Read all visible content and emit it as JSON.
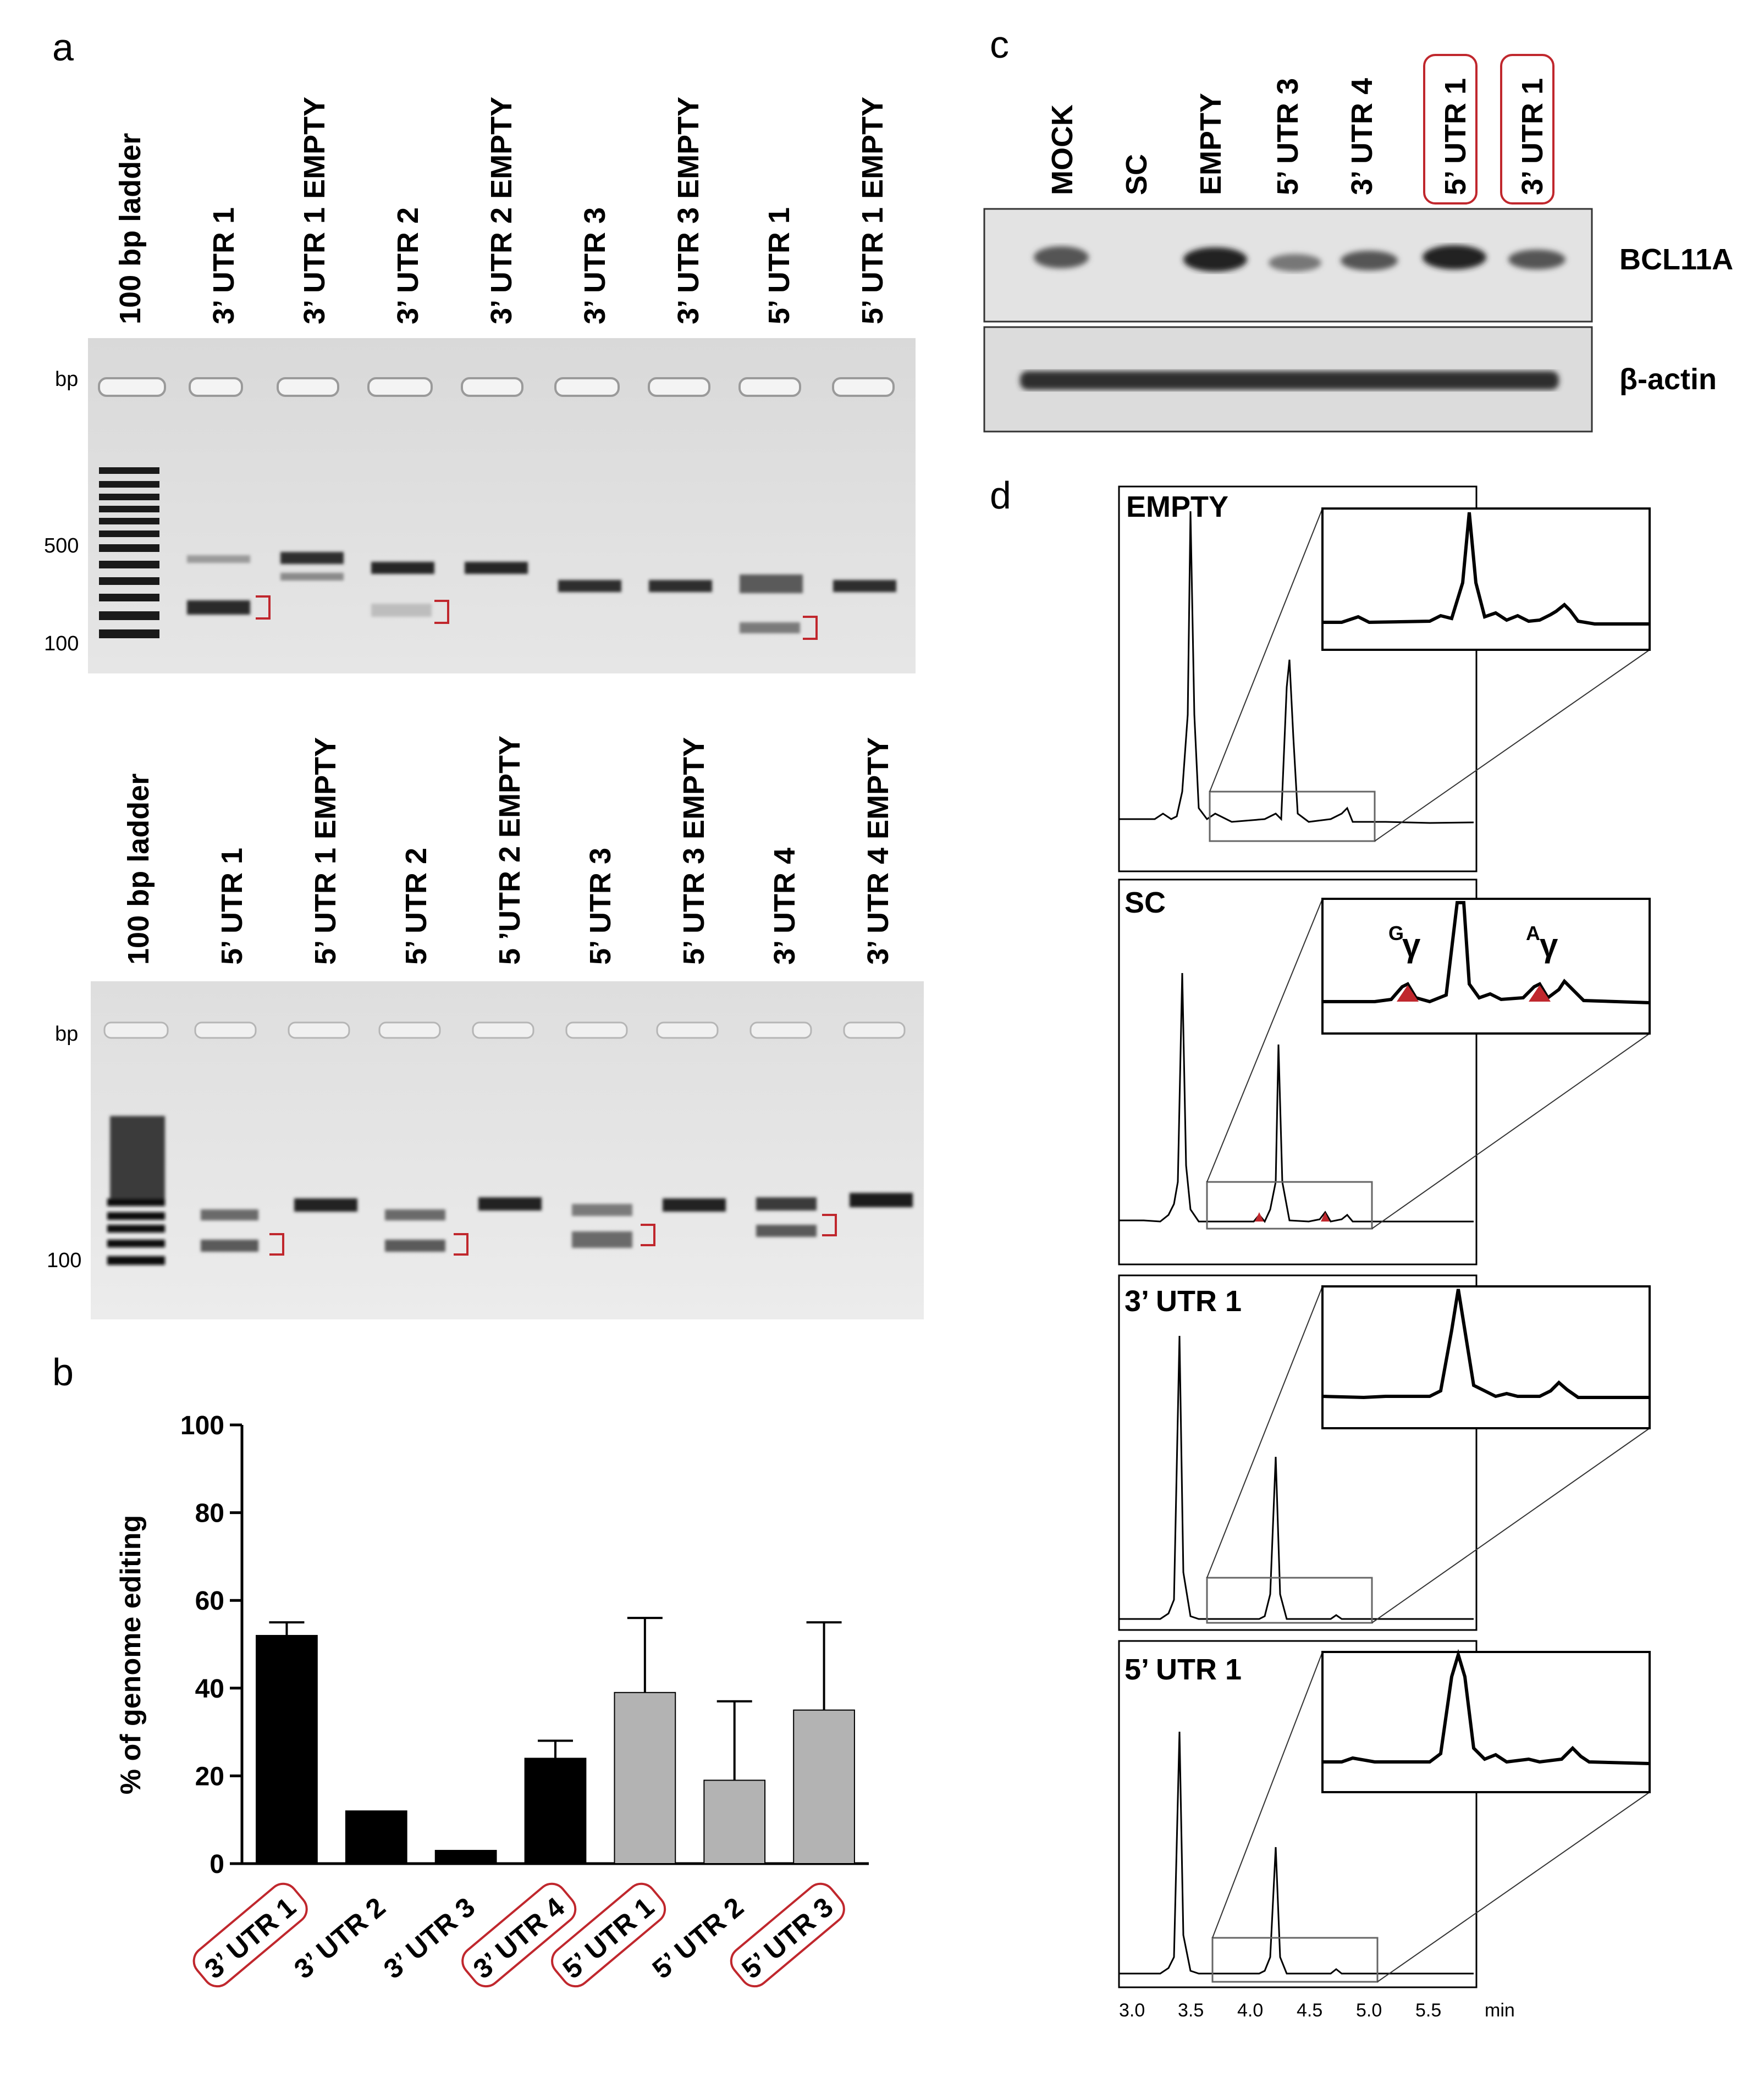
{
  "panels": {
    "a": {
      "letter": "a",
      "gel_top": {
        "lanes": [
          "100 bp ladder",
          "3’ UTR 1",
          "3’ UTR 1 EMPTY",
          "3’ UTR 2",
          "3’ UTR 2 EMPTY",
          "3’ UTR 3",
          "3’ UTR 3 EMPTY",
          "5’ UTR 1",
          "5’ UTR 1 EMPTY"
        ],
        "markers": [
          "bp",
          "500",
          "100"
        ]
      },
      "gel_bottom": {
        "lanes": [
          "100 bp ladder",
          "5’ UTR 1",
          "5’ UTR 1 EMPTY",
          "5’ UTR 2",
          "5 ’UTR 2 EMPTY",
          "5’ UTR 3",
          "5’ UTR 3 EMPTY",
          "3’ UTR 4",
          "3’ UTR 4 EMPTY"
        ],
        "markers": [
          "bp",
          "100"
        ]
      }
    },
    "c": {
      "letter": "c",
      "lanes": [
        "MOCK",
        "SC",
        "EMPTY",
        "5’ UTR 3",
        "3’ UTR 4",
        "5’ UTR 1",
        "3’ UTR 1"
      ],
      "rows": [
        "BCL11A",
        "β-actin"
      ],
      "accent": "#c0272d"
    },
    "d": {
      "letter": "d",
      "traces": [
        "EMPTY",
        "SC",
        "3’ UTR 1",
        "5’ UTR 1"
      ],
      "gamma_g": {
        "sup": "G",
        "base": "γ"
      },
      "gamma_a": {
        "sup": "A",
        "base": "γ"
      },
      "time_ticks": [
        "3.0",
        "3.5",
        "4.0",
        "4.5",
        "5.0",
        "5.5"
      ],
      "time_unit": "min"
    },
    "b": {
      "letter": "b"
    }
  },
  "chart_data": {
    "type": "bar",
    "title": "",
    "xlabel": "",
    "ylabel": "% of genome editing",
    "ylim": [
      0,
      100
    ],
    "yticks": [
      "0",
      "20",
      "40",
      "60",
      "80",
      "100"
    ],
    "categories": [
      "3’ UTR 1",
      "3’ UTR 2",
      "3’ UTR 3",
      "3’ UTR 4",
      "5’ UTR 1",
      "5’ UTR 2",
      "5’ UTR 3"
    ],
    "values": [
      52,
      12,
      3,
      24,
      39,
      19,
      35
    ],
    "error_upper": [
      55,
      12,
      3,
      28,
      56,
      37,
      55
    ],
    "bar_colors": [
      "#000000",
      "#000000",
      "#000000",
      "#000000",
      "#b3b3b3",
      "#b3b3b3",
      "#b3b3b3"
    ],
    "highlighted": [
      "3’ UTR 1",
      "3’ UTR 4",
      "5’ UTR 1",
      "5’ UTR 3"
    ],
    "highlight_color": "#c0272d",
    "grid": false
  }
}
